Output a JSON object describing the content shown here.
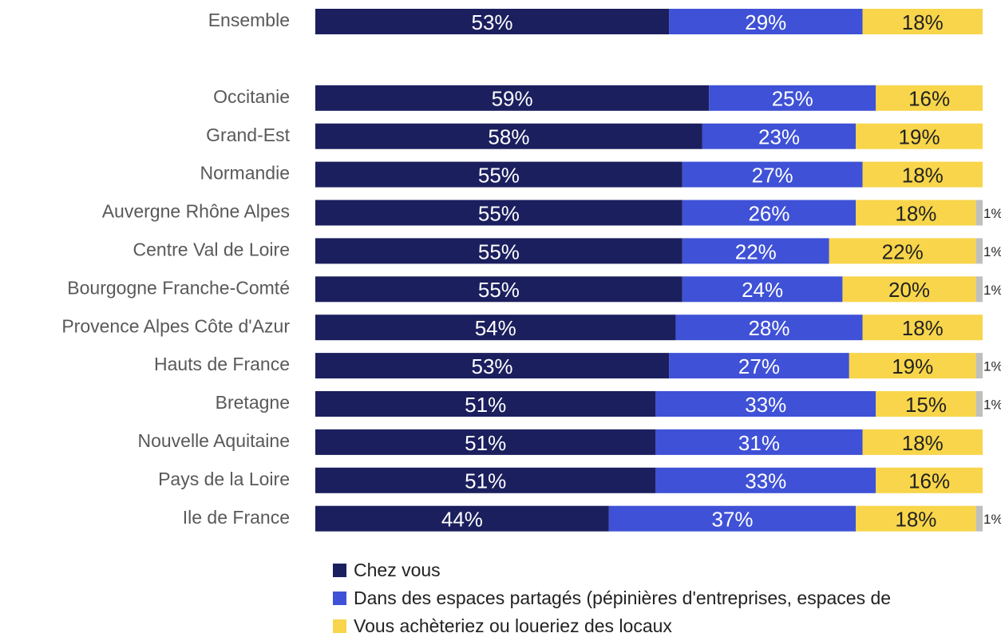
{
  "chart_data": {
    "type": "stacked_bar_horizontal",
    "categories": [
      "Ensemble",
      null,
      "Occitanie",
      "Grand-Est",
      "Normandie",
      "Auvergne Rhône Alpes",
      "Centre Val de Loire",
      "Bourgogne Franche-Comté",
      "Provence Alpes Côte d'Azur",
      "Hauts de France",
      "Bretagne",
      "Nouvelle Aquitaine",
      "Pays de la Loire",
      "Ile de France"
    ],
    "series": [
      {
        "name": "Chez vous",
        "color": "#1b1f5e",
        "values": [
          53,
          null,
          59,
          58,
          55,
          55,
          55,
          55,
          54,
          53,
          51,
          51,
          51,
          44
        ],
        "value_labels": [
          "53%",
          null,
          "59%",
          "58%",
          "55%",
          "55%",
          "55%",
          "55%",
          "54%",
          "53%",
          "51%",
          "51%",
          "51%",
          "44%"
        ]
      },
      {
        "name": "Dans des espaces partagés (pépinières d'entreprises, espaces de",
        "color": "#3f51d6",
        "values": [
          29,
          null,
          25,
          23,
          27,
          26,
          22,
          24,
          28,
          27,
          33,
          31,
          33,
          37
        ],
        "value_labels": [
          "29%",
          null,
          "25%",
          "23%",
          "27%",
          "26%",
          "22%",
          "24%",
          "28%",
          "27%",
          "33%",
          "31%",
          "33%",
          "37%"
        ]
      },
      {
        "name": "Vous achèteriez ou loueriez des locaux",
        "color": "#f8d54a",
        "values": [
          18,
          null,
          16,
          19,
          18,
          18,
          22,
          20,
          18,
          19,
          15,
          18,
          16,
          18
        ],
        "value_labels": [
          "18%",
          null,
          "16%",
          "19%",
          "18%",
          "18%",
          "22%",
          "20%",
          "18%",
          "19%",
          "15%",
          "18%",
          "16%",
          "18%"
        ]
      },
      {
        "color": "#bfbfbf",
        "values": [
          null,
          null,
          null,
          null,
          null,
          1,
          1,
          1,
          null,
          1,
          1,
          null,
          null,
          1
        ],
        "value_labels": [
          null,
          null,
          null,
          null,
          null,
          "1%",
          "1%",
          "1%",
          null,
          "1%",
          "1%",
          null,
          null,
          "1%"
        ]
      }
    ],
    "xlim": [
      0,
      100
    ]
  }
}
